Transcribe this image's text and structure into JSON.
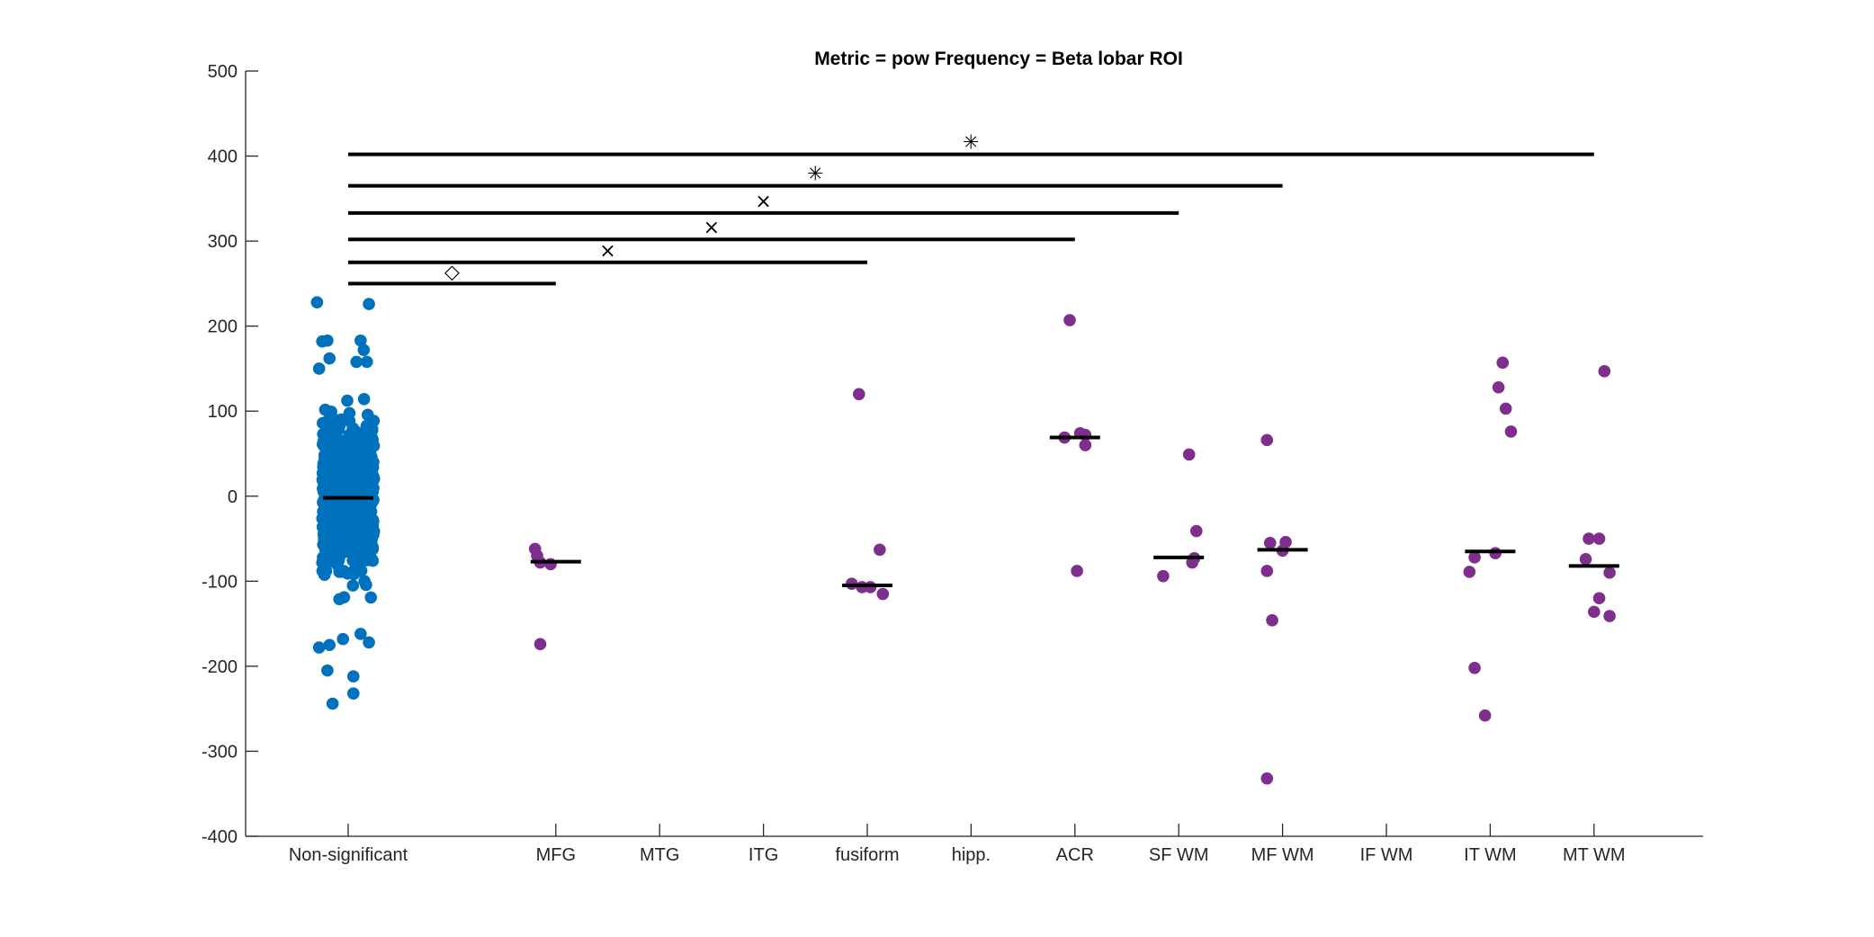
{
  "chart_data": {
    "type": "scatter",
    "title": "Metric = pow Frequency = Beta lobar ROI",
    "xlabel": "",
    "ylabel": "",
    "ylim": [
      -400,
      500
    ],
    "yticks": [
      -400,
      -300,
      -200,
      -100,
      0,
      100,
      200,
      300,
      400,
      500
    ],
    "categories": [
      "Non-significant",
      "",
      "MFG",
      "MTG",
      "ITG",
      "fusiform",
      "hipp.",
      "ACR",
      "SF WM",
      "MF WM",
      "IF WM",
      "IT WM",
      "MT WM"
    ],
    "grid": false,
    "colors": {
      "nonsignificant": "#0072bd",
      "significant": "#7e2f8e",
      "median": "#000000",
      "axis": "#262626"
    },
    "nonsignificant_cloud": {
      "category_index": 0,
      "n_points": 900,
      "range": [
        -245,
        228
      ],
      "median": -2
    },
    "series": [
      {
        "category_index": 0,
        "points": [
          [
            -0.3,
            228
          ],
          [
            0.2,
            226
          ],
          [
            -0.2,
            183
          ],
          [
            0.12,
            183
          ],
          [
            -0.25,
            182
          ],
          [
            0.15,
            172
          ],
          [
            -0.18,
            162
          ],
          [
            0.08,
            158
          ],
          [
            0.18,
            158
          ],
          [
            -0.28,
            150
          ],
          [
            -0.18,
            -175
          ],
          [
            0.2,
            -172
          ],
          [
            -0.05,
            -168
          ],
          [
            -0.28,
            -178
          ],
          [
            0.12,
            -162
          ],
          [
            -0.2,
            -205
          ],
          [
            0.05,
            -212
          ],
          [
            -0.15,
            -244
          ],
          [
            0.05,
            -232
          ]
        ],
        "median": -2
      },
      {
        "category_index": 2,
        "points": [
          [
            -0.2,
            -62
          ],
          [
            -0.18,
            -70
          ],
          [
            -0.15,
            -78
          ],
          [
            -0.05,
            -80
          ],
          [
            -0.15,
            -174
          ]
        ],
        "median": -77
      },
      {
        "category_index": 5,
        "points": [
          [
            -0.08,
            120
          ],
          [
            0.12,
            -63
          ],
          [
            -0.15,
            -103
          ],
          [
            -0.05,
            -107
          ],
          [
            0.03,
            -107
          ],
          [
            0.15,
            -115
          ]
        ],
        "median": -105
      },
      {
        "category_index": 7,
        "points": [
          [
            -0.05,
            207
          ],
          [
            -0.1,
            69
          ],
          [
            0.05,
            74
          ],
          [
            0.1,
            72
          ],
          [
            0.1,
            60
          ],
          [
            0.02,
            -88
          ]
        ],
        "median": 69
      },
      {
        "category_index": 8,
        "points": [
          [
            0.1,
            49
          ],
          [
            0.17,
            -41
          ],
          [
            0.15,
            -73
          ],
          [
            0.13,
            -78
          ],
          [
            -0.15,
            -94
          ]
        ],
        "median": -72
      },
      {
        "category_index": 9,
        "points": [
          [
            -0.15,
            66
          ],
          [
            -0.12,
            -55
          ],
          [
            0.03,
            -54
          ],
          [
            0,
            -64
          ],
          [
            -0.15,
            -88
          ],
          [
            -0.1,
            -146
          ],
          [
            -0.15,
            -332
          ]
        ],
        "median": -63
      },
      {
        "category_index": 11,
        "points": [
          [
            0.12,
            157
          ],
          [
            0.08,
            128
          ],
          [
            0.15,
            103
          ],
          [
            0.2,
            76
          ],
          [
            0.05,
            -67
          ],
          [
            -0.15,
            -72
          ],
          [
            -0.2,
            -89
          ],
          [
            -0.15,
            -202
          ],
          [
            -0.05,
            -258
          ]
        ],
        "median": -65
      },
      {
        "category_index": 12,
        "points": [
          [
            0.1,
            147
          ],
          [
            -0.05,
            -50
          ],
          [
            0.05,
            -50
          ],
          [
            -0.08,
            -74
          ],
          [
            0.15,
            -90
          ],
          [
            0.05,
            -120
          ],
          [
            0,
            -136
          ],
          [
            0.15,
            -141
          ]
        ],
        "median": -82
      }
    ],
    "significance": [
      {
        "x1": 0,
        "x2": 2,
        "y": 250,
        "marker": "◇"
      },
      {
        "x1": 0,
        "x2": 5,
        "y": 275,
        "marker": "×"
      },
      {
        "x1": 0,
        "x2": 7,
        "y": 302,
        "marker": "×"
      },
      {
        "x1": 0,
        "x2": 8,
        "y": 333,
        "marker": "×"
      },
      {
        "x1": 0,
        "x2": 9,
        "y": 365,
        "marker": "✳"
      },
      {
        "x1": 0,
        "x2": 12,
        "y": 402,
        "marker": "✳"
      }
    ]
  }
}
